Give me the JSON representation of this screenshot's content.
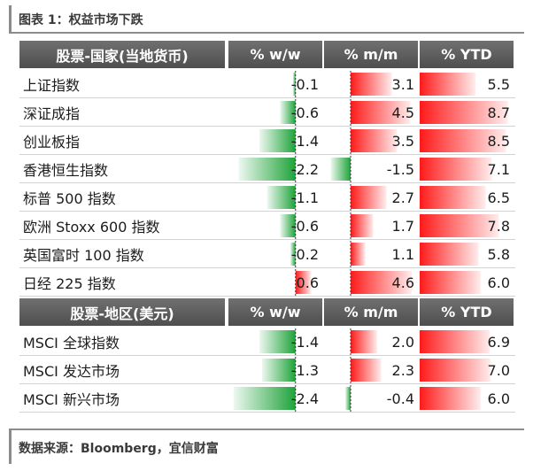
{
  "title": "图表 1：权益市场下跌",
  "footer": "数据来源：Bloomberg，宜信财富",
  "colors": {
    "pos": "#ff1a1a",
    "neg": "#1fa33a",
    "header": "#5a5a5a"
  },
  "chart_data": {
    "type": "table",
    "columns": [
      "% w/w",
      "% m/m",
      "% YTD"
    ],
    "sections": [
      {
        "header": "股票-国家(当地货币)",
        "rows": [
          {
            "name": "上证指数",
            "values": [
              -0.1,
              3.1,
              5.5
            ]
          },
          {
            "name": "深证成指",
            "values": [
              -0.6,
              4.5,
              8.7
            ]
          },
          {
            "name": "创业板指",
            "values": [
              -1.4,
              3.5,
              8.5
            ]
          },
          {
            "name": "香港恒生指数",
            "values": [
              -2.2,
              -1.5,
              7.1
            ]
          },
          {
            "name": "标普 500 指数",
            "values": [
              -1.1,
              2.7,
              6.5
            ]
          },
          {
            "name": "欧洲 Stoxx 600 指数",
            "values": [
              -0.6,
              1.7,
              7.8
            ]
          },
          {
            "name": "英国富时 100 指数",
            "values": [
              -0.2,
              1.1,
              5.8
            ]
          },
          {
            "name": "日经 225 指数",
            "values": [
              0.6,
              4.6,
              6.0
            ]
          }
        ]
      },
      {
        "header": "股票-地区(美元)",
        "rows": [
          {
            "name": "MSCI 全球指数",
            "values": [
              -1.4,
              2.0,
              6.9
            ]
          },
          {
            "name": "MSCI 发达市场",
            "values": [
              -1.3,
              2.3,
              7.0
            ]
          },
          {
            "name": "MSCI 新兴市场",
            "values": [
              -2.4,
              -0.4,
              6.0
            ]
          }
        ]
      }
    ]
  }
}
